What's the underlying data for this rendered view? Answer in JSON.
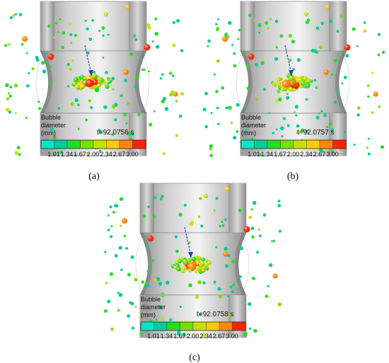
{
  "figure": {
    "panels": [
      {
        "id": "a",
        "label": "(a)",
        "time": "t=92.0756 s"
      },
      {
        "id": "b",
        "label": "(b)",
        "time": "t=92.0757 s"
      },
      {
        "id": "c",
        "label": "(c)",
        "time": "t=92.0758 s"
      }
    ],
    "legend": {
      "title_line1": "Bubble",
      "title_line2": "diameter",
      "title_line3": "(mm)",
      "ticks": [
        "1.01",
        "1.34",
        "1.67",
        "2.00",
        "2.34",
        "2.67",
        "3.00"
      ],
      "colors": [
        "#00e5c8",
        "#00cc99",
        "#22dd22",
        "#77e000",
        "#c8e000",
        "#ffcc00",
        "#ff8800",
        "#ff2200"
      ]
    },
    "colors": {
      "arrow": "#2244cc",
      "bubble_small": "#33bb33"
    }
  }
}
